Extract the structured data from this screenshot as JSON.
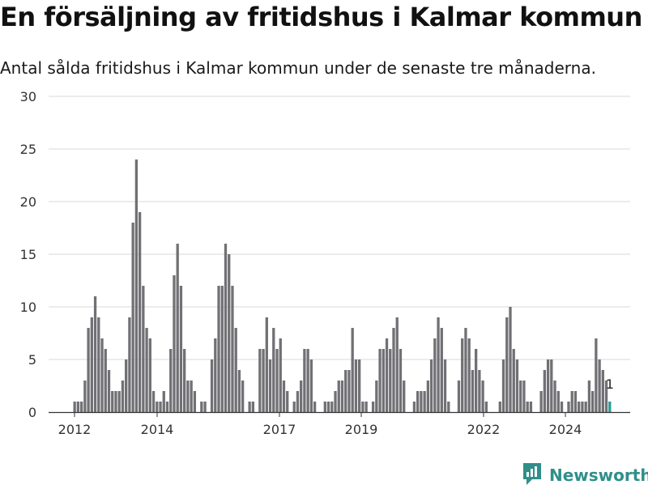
{
  "header": {
    "title": "En försäljning av fritidshus i Kalmar kommun",
    "subtitle": "Antal sålda fritidshus i Kalmar kommun under de senaste tre månaderna."
  },
  "brand": {
    "name": "Newsworthy",
    "color": "#2f8f8a"
  },
  "chart_data": {
    "type": "bar",
    "y_ticks": [
      "0",
      "5",
      "10",
      "15",
      "20",
      "25",
      "30"
    ],
    "x_ticks": [
      "2012",
      "2014",
      "2017",
      "2019",
      "2022",
      "2024"
    ],
    "ylim": [
      0,
      30
    ],
    "grid": true,
    "bar_color": "#717074",
    "highlight_color": "#2a9c98",
    "last_value_label": "1",
    "values": [
      1,
      1,
      1,
      3,
      8,
      9,
      11,
      9,
      7,
      6,
      4,
      2,
      2,
      2,
      3,
      5,
      9,
      18,
      24,
      19,
      12,
      8,
      7,
      2,
      1,
      1,
      2,
      1,
      6,
      13,
      16,
      12,
      6,
      3,
      3,
      2,
      0,
      1,
      1,
      0,
      5,
      7,
      12,
      12,
      16,
      15,
      12,
      8,
      4,
      3,
      0,
      1,
      1,
      0,
      6,
      6,
      9,
      5,
      8,
      6,
      7,
      3,
      2,
      0,
      1,
      2,
      3,
      6,
      6,
      5,
      1,
      0,
      0,
      1,
      1,
      1,
      2,
      3,
      3,
      4,
      4,
      8,
      5,
      5,
      1,
      1,
      0,
      1,
      3,
      6,
      6,
      7,
      6,
      8,
      9,
      6,
      3,
      0,
      0,
      1,
      2,
      2,
      2,
      3,
      5,
      7,
      9,
      8,
      5,
      1,
      0,
      0,
      3,
      7,
      8,
      7,
      4,
      6,
      4,
      3,
      1,
      0,
      0,
      0,
      1,
      5,
      9,
      10,
      6,
      5,
      3,
      3,
      1,
      1,
      0,
      0,
      2,
      4,
      5,
      5,
      3,
      2,
      1,
      0,
      1,
      2,
      2,
      1,
      1,
      1,
      3,
      2,
      7,
      5,
      4,
      3,
      1
    ]
  }
}
